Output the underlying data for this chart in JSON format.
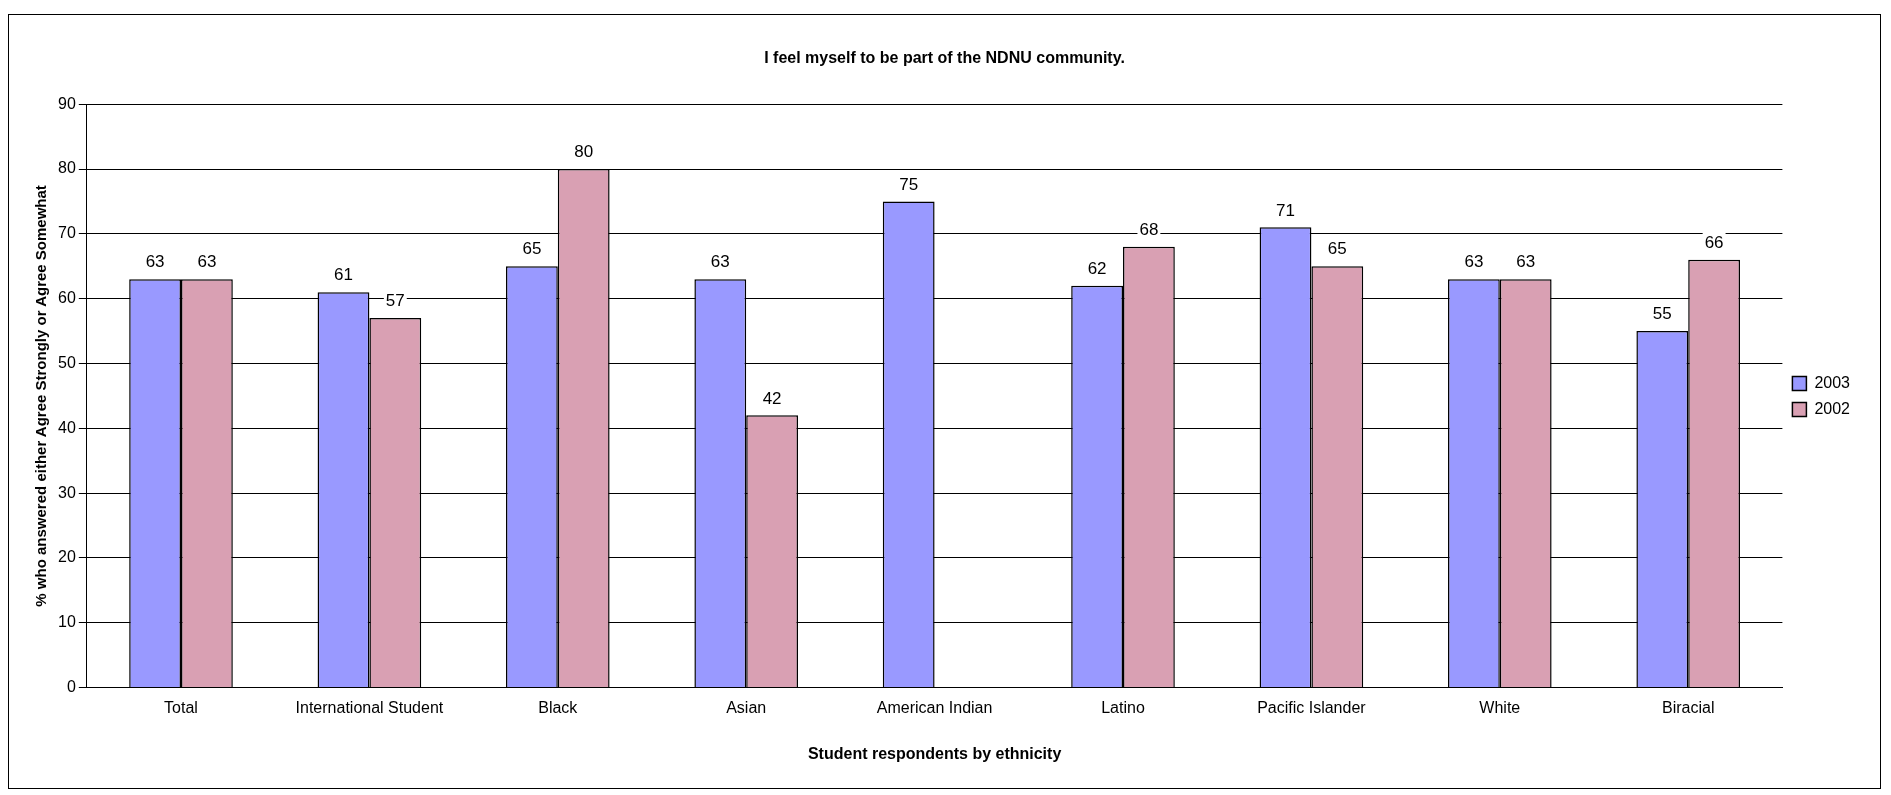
{
  "chart_data": {
    "type": "bar",
    "title": "I feel myself to be part of the NDNU community.",
    "xlabel": "Student respondents by ethnicity",
    "ylabel": "% who answered either Agree Strongly or Agree Somewhat",
    "categories": [
      "Total",
      "International Student",
      "Black",
      "Asian",
      "American Indian",
      "Latino",
      "Pacific Islander",
      "White",
      "Biracial"
    ],
    "series": [
      {
        "name": "2003",
        "color": "#9999ff",
        "values": [
          63,
          61,
          65,
          63,
          75,
          62,
          71,
          63,
          55
        ]
      },
      {
        "name": "2002",
        "color": "#d9a0b3",
        "values": [
          63,
          57,
          80,
          42,
          null,
          68,
          65,
          63,
          66
        ]
      }
    ],
    "ylim": [
      0,
      90
    ],
    "yticks": [
      0,
      10,
      20,
      30,
      40,
      50,
      60,
      70,
      80,
      90
    ],
    "grid": "y",
    "legend": "right",
    "data_labels": true
  }
}
